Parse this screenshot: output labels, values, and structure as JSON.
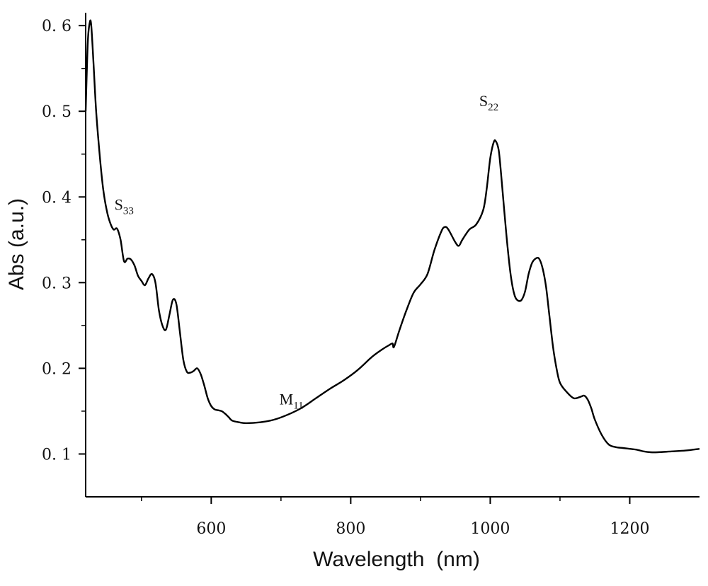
{
  "chart_data": {
    "type": "line",
    "title": "",
    "xlabel": "Wavelength  (nm)",
    "ylabel": "Abs (a.u.)",
    "xlim": [
      420,
      1300
    ],
    "ylim": [
      0.05,
      0.615
    ],
    "xticks": [
      {
        "value": 600,
        "label": "600"
      },
      {
        "value": 800,
        "label": "800"
      },
      {
        "value": 1000,
        "label": "1000"
      },
      {
        "value": 1200,
        "label": "1200"
      }
    ],
    "xminor": [
      500,
      700,
      900,
      1100
    ],
    "yticks": [
      {
        "value": 0.1,
        "label": "0. 1"
      },
      {
        "value": 0.2,
        "label": "0. 2"
      },
      {
        "value": 0.3,
        "label": "0. 3"
      },
      {
        "value": 0.4,
        "label": "0. 4"
      },
      {
        "value": 0.5,
        "label": "0. 5"
      },
      {
        "value": 0.6,
        "label": "0. 6"
      }
    ],
    "yminor": [
      0.15,
      0.25,
      0.35,
      0.45,
      0.55
    ],
    "series": [
      {
        "name": "absorbance",
        "color": "#000000",
        "x": [
          420,
          423,
          426,
          428,
          431,
          435,
          440,
          445,
          450,
          455,
          460,
          465,
          470,
          475,
          480,
          485,
          490,
          495,
          500,
          505,
          510,
          515,
          520,
          525,
          530,
          535,
          540,
          545,
          550,
          555,
          560,
          565,
          570,
          575,
          580,
          585,
          590,
          595,
          600,
          605,
          610,
          615,
          620,
          625,
          630,
          640,
          650,
          670,
          690,
          710,
          730,
          750,
          770,
          790,
          810,
          830,
          845,
          855,
          860,
          862,
          870,
          880,
          890,
          900,
          910,
          920,
          930,
          935,
          940,
          950,
          955,
          960,
          970,
          980,
          990,
          995,
          1000,
          1005,
          1008,
          1012,
          1015,
          1020,
          1025,
          1030,
          1035,
          1040,
          1045,
          1050,
          1055,
          1060,
          1065,
          1070,
          1075,
          1080,
          1085,
          1090,
          1095,
          1100,
          1110,
          1120,
          1130,
          1135,
          1140,
          1145,
          1150,
          1160,
          1170,
          1180,
          1190,
          1200,
          1210,
          1220,
          1230,
          1240,
          1260,
          1280,
          1300
        ],
        "y": [
          0.5,
          0.58,
          0.604,
          0.6,
          0.56,
          0.5,
          0.45,
          0.41,
          0.385,
          0.37,
          0.362,
          0.363,
          0.35,
          0.325,
          0.328,
          0.327,
          0.32,
          0.308,
          0.302,
          0.297,
          0.305,
          0.31,
          0.3,
          0.268,
          0.25,
          0.245,
          0.262,
          0.28,
          0.275,
          0.243,
          0.21,
          0.196,
          0.195,
          0.197,
          0.2,
          0.193,
          0.18,
          0.165,
          0.156,
          0.152,
          0.151,
          0.15,
          0.147,
          0.143,
          0.139,
          0.137,
          0.136,
          0.137,
          0.14,
          0.146,
          0.154,
          0.165,
          0.176,
          0.186,
          0.198,
          0.213,
          0.222,
          0.227,
          0.229,
          0.225,
          0.245,
          0.268,
          0.288,
          0.298,
          0.31,
          0.338,
          0.36,
          0.365,
          0.362,
          0.347,
          0.343,
          0.35,
          0.362,
          0.368,
          0.385,
          0.41,
          0.445,
          0.464,
          0.465,
          0.455,
          0.432,
          0.385,
          0.34,
          0.305,
          0.285,
          0.279,
          0.28,
          0.29,
          0.31,
          0.323,
          0.328,
          0.328,
          0.317,
          0.295,
          0.26,
          0.225,
          0.2,
          0.183,
          0.172,
          0.165,
          0.167,
          0.168,
          0.163,
          0.153,
          0.14,
          0.122,
          0.111,
          0.108,
          0.107,
          0.106,
          0.105,
          0.103,
          0.102,
          0.102,
          0.103,
          0.104,
          0.106
        ]
      }
    ],
    "annotations": [
      {
        "id": "s33",
        "main": "S",
        "sub": "33",
        "x": 475,
        "y": 0.385
      },
      {
        "id": "m11",
        "main": "M",
        "sub": "11",
        "x": 715,
        "y": 0.158
      },
      {
        "id": "s22",
        "main": "S",
        "sub": "22",
        "x": 998,
        "y": 0.506
      }
    ]
  }
}
